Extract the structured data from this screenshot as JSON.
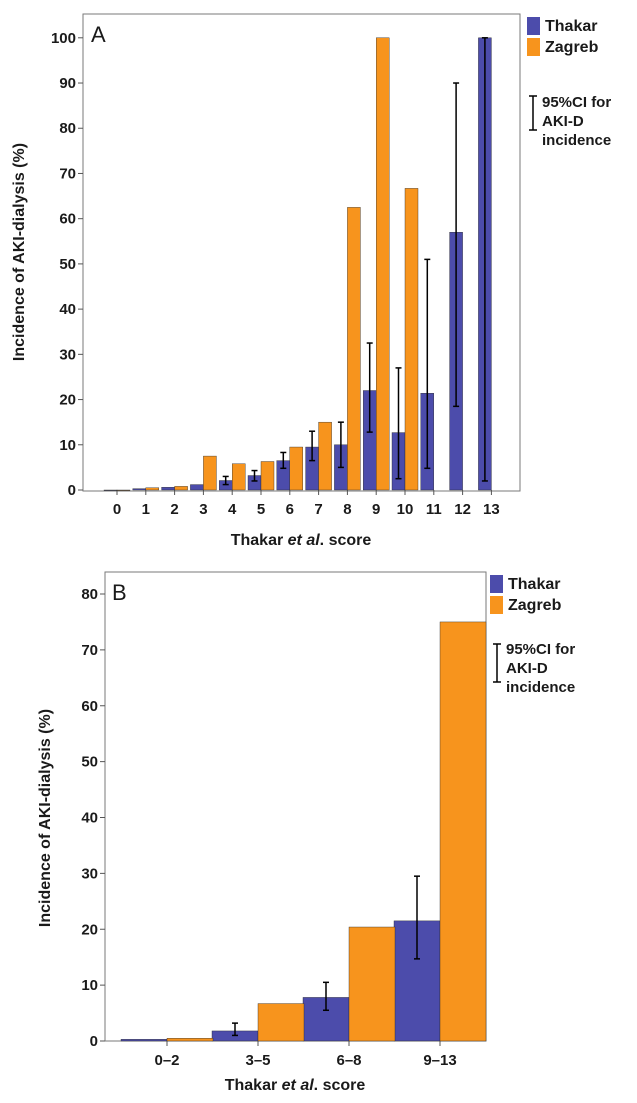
{
  "chart_data": [
    {
      "type": "bar",
      "panel_label": "A",
      "categories": [
        "0",
        "1",
        "2",
        "3",
        "4",
        "5",
        "6",
        "7",
        "8",
        "9",
        "10",
        "11",
        "12",
        "13"
      ],
      "series": [
        {
          "name": "Thakar",
          "color": "#4c4cab",
          "values": [
            0,
            0.3,
            0.6,
            1.2,
            2.1,
            3.2,
            6.5,
            9.5,
            10,
            22,
            12.7,
            21.4,
            57,
            100
          ],
          "ci_low": [
            null,
            null,
            null,
            null,
            1.2,
            2.0,
            4.8,
            6.5,
            5.0,
            12.8,
            2.5,
            4.8,
            18.5,
            2.0
          ],
          "ci_high": [
            null,
            null,
            null,
            null,
            3.0,
            4.3,
            8.3,
            13.0,
            15.0,
            32.5,
            27.0,
            51.0,
            90.0,
            100
          ]
        },
        {
          "name": "Zagreb",
          "color": "#f7941d",
          "values": [
            0,
            0.5,
            0.8,
            7.5,
            5.8,
            6.3,
            9.5,
            15,
            62.5,
            100,
            66.7,
            null,
            null,
            null
          ]
        }
      ],
      "title": "",
      "xlabel_parts": [
        "Thakar ",
        "et al",
        ". score"
      ],
      "ylabel": "Incidence of AKI-dialysis (%)",
      "ylim": [
        0,
        104
      ],
      "yticks": [
        0,
        10,
        20,
        30,
        40,
        50,
        60,
        70,
        80,
        90,
        100
      ],
      "legend": {
        "placement": "right",
        "ci_label_lines": [
          "95%CI for",
          "AKI-D",
          "incidence"
        ]
      }
    },
    {
      "type": "bar",
      "panel_label": "B",
      "categories": [
        "0–2",
        "3–5",
        "6–8",
        "9–13"
      ],
      "series": [
        {
          "name": "Thakar",
          "color": "#4c4cab",
          "values": [
            0.3,
            1.8,
            7.8,
            21.5
          ],
          "ci_low": [
            null,
            1.0,
            5.5,
            14.7
          ],
          "ci_high": [
            null,
            3.2,
            10.5,
            29.5
          ]
        },
        {
          "name": "Zagreb",
          "color": "#f7941d",
          "values": [
            0.5,
            6.7,
            20.4,
            75
          ]
        }
      ],
      "title": "",
      "xlabel_parts": [
        "Thakar ",
        "et al",
        ". score"
      ],
      "ylabel": "Incidence of AKI-dialysis (%)",
      "ylim": [
        0,
        83.5
      ],
      "yticks": [
        0,
        10,
        20,
        30,
        40,
        50,
        60,
        70,
        80
      ],
      "legend": {
        "placement": "right",
        "ci_label_lines": [
          "95%CI for",
          "AKI-D",
          "incidence"
        ]
      }
    }
  ]
}
